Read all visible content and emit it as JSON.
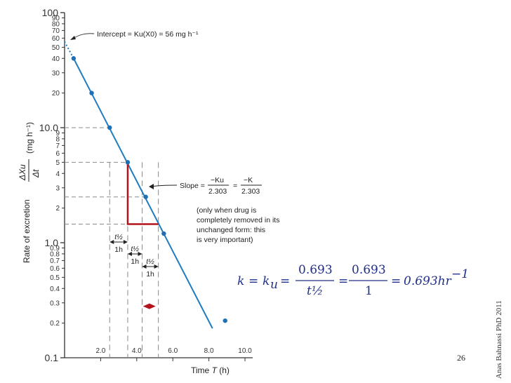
{
  "chart_data": {
    "type": "scatter",
    "scale": "log-y",
    "xlabel": "Time ",
    "xlabel_var": "T",
    "xlabel_unit": " (h)",
    "ylabel_main": "Rate of excretion",
    "ylabel_frac_num": "ΔXu",
    "ylabel_frac_den": "Δt",
    "ylabel_unit": "(mg h⁻¹)",
    "xlim": [
      0,
      10.5
    ],
    "ylim": [
      0.1,
      100
    ],
    "x_ticks": [
      "2.0",
      "4.0",
      "6.0",
      "8.0",
      "10.0"
    ],
    "x_tick_values": [
      2,
      4,
      6,
      8,
      10
    ],
    "y_ticks_major": [
      {
        "v": 100,
        "label": "100"
      },
      {
        "v": 10,
        "label": "10.0"
      },
      {
        "v": 1,
        "label": "1.0"
      },
      {
        "v": 0.1,
        "label": "0.1"
      }
    ],
    "y_ticks_minor": [
      {
        "v": 90,
        "label": "90"
      },
      {
        "v": 80,
        "label": "80"
      },
      {
        "v": 70,
        "label": "70"
      },
      {
        "v": 60,
        "label": "60"
      },
      {
        "v": 50,
        "label": "50"
      },
      {
        "v": 40,
        "label": "40"
      },
      {
        "v": 30,
        "label": "30"
      },
      {
        "v": 20,
        "label": "20"
      },
      {
        "v": 9,
        "label": "9"
      },
      {
        "v": 8,
        "label": "8"
      },
      {
        "v": 7,
        "label": "7"
      },
      {
        "v": 6,
        "label": "6"
      },
      {
        "v": 5,
        "label": "5"
      },
      {
        "v": 4,
        "label": "4"
      },
      {
        "v": 3,
        "label": "3"
      },
      {
        "v": 2,
        "label": "2"
      },
      {
        "v": 0.9,
        "label": "0.9"
      },
      {
        "v": 0.8,
        "label": "0.8"
      },
      {
        "v": 0.7,
        "label": "0.7"
      },
      {
        "v": 0.6,
        "label": "0.6"
      },
      {
        "v": 0.5,
        "label": "0.5"
      },
      {
        "v": 0.4,
        "label": "0.4"
      },
      {
        "v": 0.3,
        "label": "0.3"
      },
      {
        "v": 0.2,
        "label": "0.2"
      }
    ],
    "series": [
      {
        "points": [
          {
            "x": 0.5,
            "y": 40
          },
          {
            "x": 1.5,
            "y": 20
          },
          {
            "x": 2.5,
            "y": 10
          },
          {
            "x": 3.5,
            "y": 5
          },
          {
            "x": 4.5,
            "y": 2.5
          },
          {
            "x": 5.5,
            "y": 1.2
          },
          {
            "x": 8.9,
            "y": 0.21
          }
        ]
      }
    ],
    "fit_line": {
      "x0": 0.5,
      "y0": 40,
      "x1": 8.2,
      "y1": 0.18
    },
    "fit_extrapolation": {
      "x0": 0,
      "y0": 56
    },
    "guide_lines": {
      "horizontal": [
        {
          "y": 10,
          "x_to": 2.5
        },
        {
          "y": 5,
          "x_to": 3.5
        },
        {
          "y": 2.5,
          "x_to": 4.5
        },
        {
          "y": 1.45,
          "x_to": 3.5
        }
      ],
      "vertical": [
        2.5,
        3.5,
        4.3,
        5.2
      ]
    },
    "slope_triangle": {
      "x0": 3.5,
      "y_top": 5,
      "y_bottom": 1.45,
      "x1": 5.2
    },
    "marker_diamond": {
      "x": 4.7,
      "y": 0.28
    },
    "annotations": {
      "intercept_text": "Intercept = ",
      "intercept_formula": "Ku(X0) = 56 mg h⁻¹",
      "slope_label": "Slope = ",
      "slope_frac1_num": "−Ku",
      "slope_frac1_den": "2.303",
      "slope_eq": "=",
      "slope_frac2_num": "−K",
      "slope_frac2_den": "2.303",
      "note": [
        "(only when drug is",
        "completely removed in its",
        "unchanged form: this",
        "is very important)"
      ],
      "half_life": [
        {
          "sym": "t½",
          "label": "1h"
        },
        {
          "sym": "t½",
          "label": "1h"
        },
        {
          "sym": "t½",
          "label": "1h"
        }
      ]
    }
  },
  "equation": {
    "k": "k",
    "eq1": "=",
    "ku": "k",
    "ku_sub": "u",
    "eq2": "=",
    "frac1_num": "0.693",
    "frac1_den": "t½",
    "eq3": "=",
    "frac2_num": "0.693",
    "frac2_den": "1",
    "eq4": "=",
    "result": "0.693hr",
    "result_sup": "−1"
  },
  "side_text": "Anas Bahnassi PhD 2011",
  "page_number": "26",
  "colors": {
    "line": "#1f7cbf",
    "points": "#1f6fb5",
    "triangle": "#b3141b",
    "guides": "#8a8a8a",
    "equation": "#1f2f8a"
  }
}
